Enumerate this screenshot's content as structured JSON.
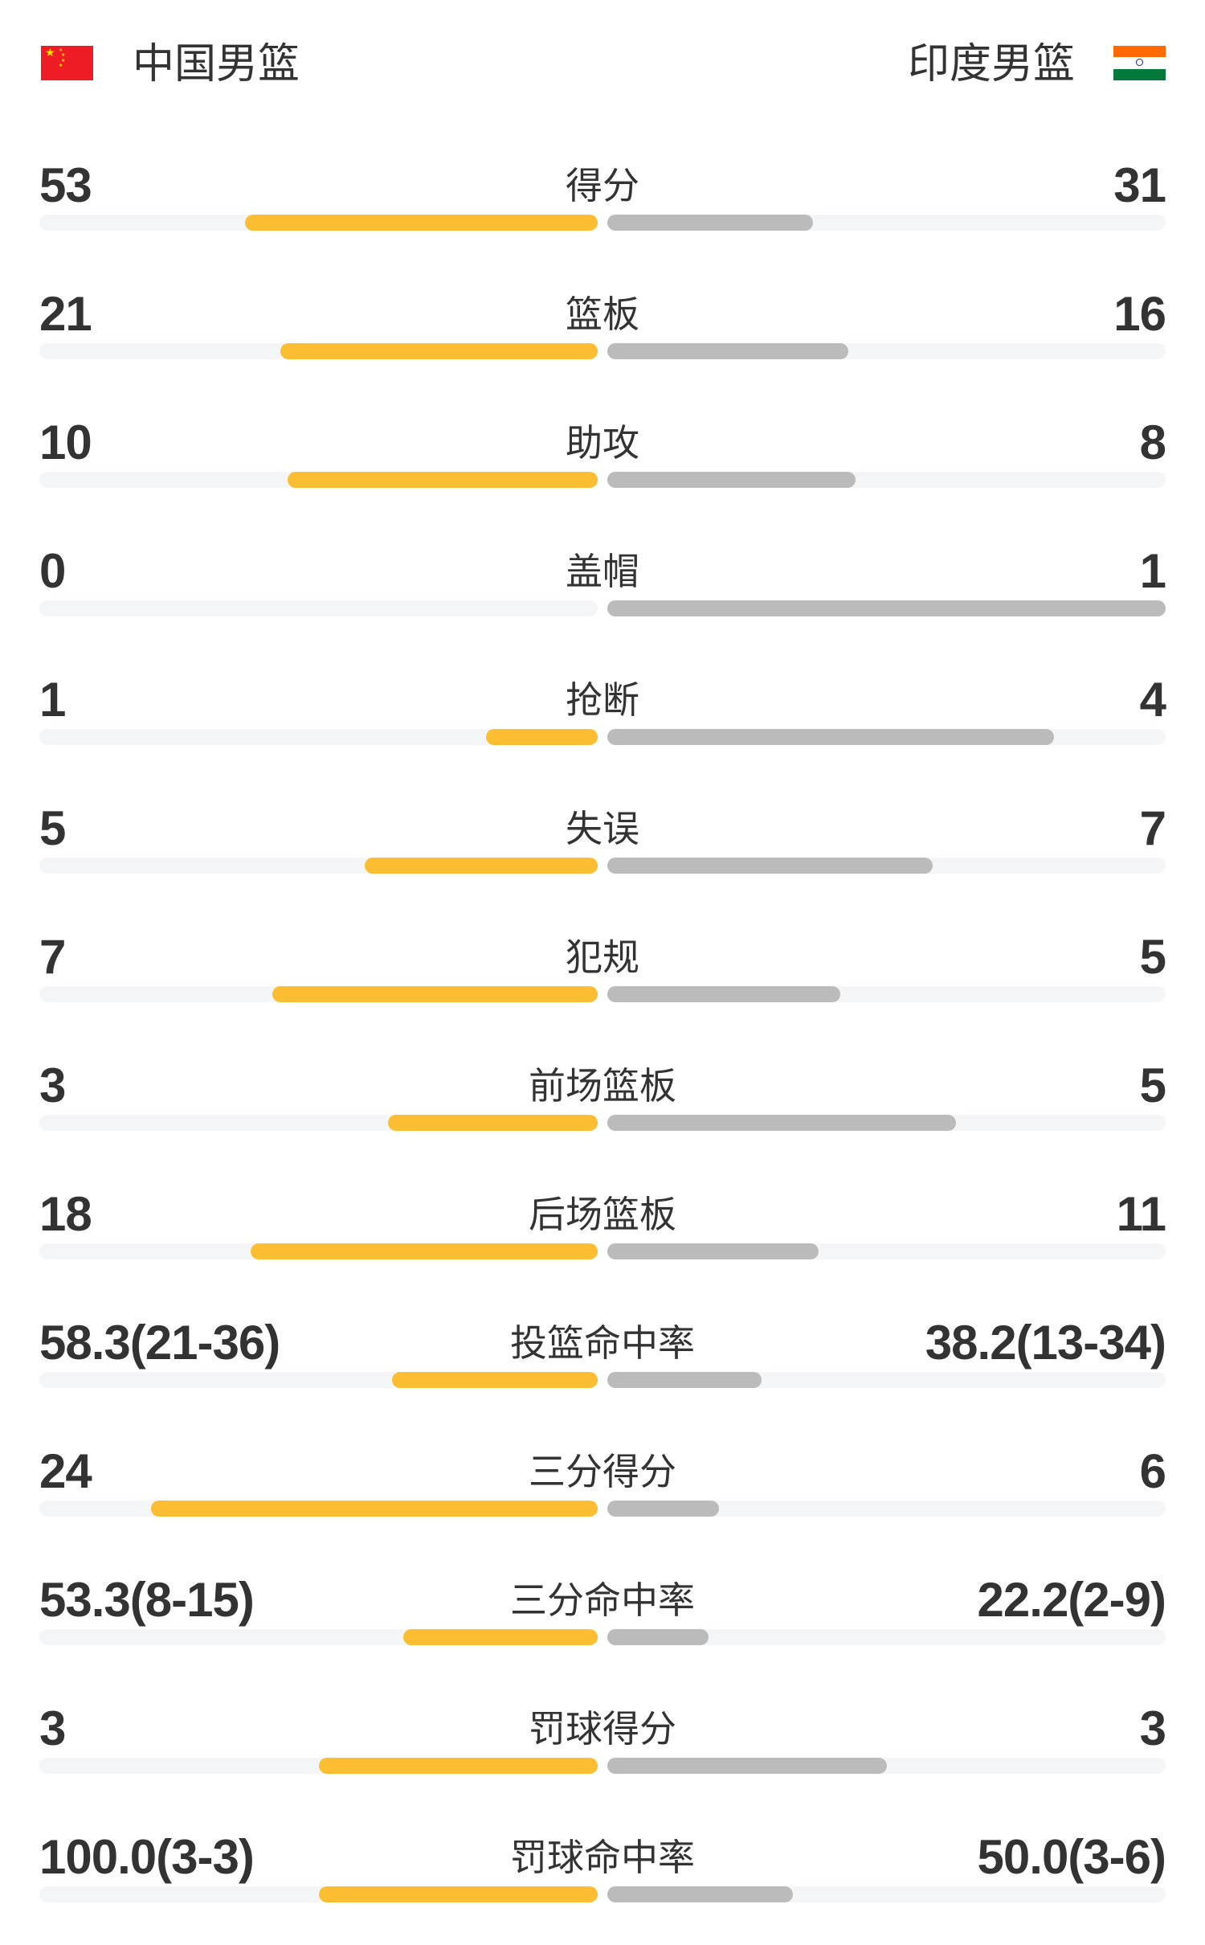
{
  "header": {
    "home_team": "中国男篮",
    "away_team": "印度男篮",
    "home_flag": "china-flag",
    "away_flag": "india-flag"
  },
  "colors": {
    "home_bar": "#fbbe32",
    "away_bar": "#bbbbbb",
    "track": "#f4f5f7",
    "text": "#333333"
  },
  "stats": [
    {
      "label": "得分",
      "home": "53",
      "away": "31",
      "home_fill": 0.631,
      "away_fill": 0.369
    },
    {
      "label": "篮板",
      "home": "21",
      "away": "16",
      "home_fill": 0.568,
      "away_fill": 0.432
    },
    {
      "label": "助攻",
      "home": "10",
      "away": "8",
      "home_fill": 0.556,
      "away_fill": 0.444
    },
    {
      "label": "盖帽",
      "home": "0",
      "away": "1",
      "home_fill": 0,
      "away_fill": 1
    },
    {
      "label": "抢断",
      "home": "1",
      "away": "4",
      "home_fill": 0.2,
      "away_fill": 0.8
    },
    {
      "label": "失误",
      "home": "5",
      "away": "7",
      "home_fill": 0.417,
      "away_fill": 0.583
    },
    {
      "label": "犯规",
      "home": "7",
      "away": "5",
      "home_fill": 0.583,
      "away_fill": 0.417
    },
    {
      "label": "前场篮板",
      "home": "3",
      "away": "5",
      "home_fill": 0.375,
      "away_fill": 0.625
    },
    {
      "label": "后场篮板",
      "home": "18",
      "away": "11",
      "home_fill": 0.621,
      "away_fill": 0.379
    },
    {
      "label": "投篮命中率",
      "home": "58.3(21-36)",
      "away": "38.2(13-34)",
      "home_fill": 0.368,
      "away_fill": 0.276
    },
    {
      "label": "三分得分",
      "home": "24",
      "away": "6",
      "home_fill": 0.8,
      "away_fill": 0.2
    },
    {
      "label": "三分命中率",
      "home": "53.3(8-15)",
      "away": "22.2(2-9)",
      "home_fill": 0.348,
      "away_fill": 0.182
    },
    {
      "label": "罚球得分",
      "home": "3",
      "away": "3",
      "home_fill": 0.5,
      "away_fill": 0.5
    },
    {
      "label": "罚球命中率",
      "home": "100.0(3-3)",
      "away": "50.0(3-6)",
      "home_fill": 0.5,
      "away_fill": 0.333
    }
  ]
}
